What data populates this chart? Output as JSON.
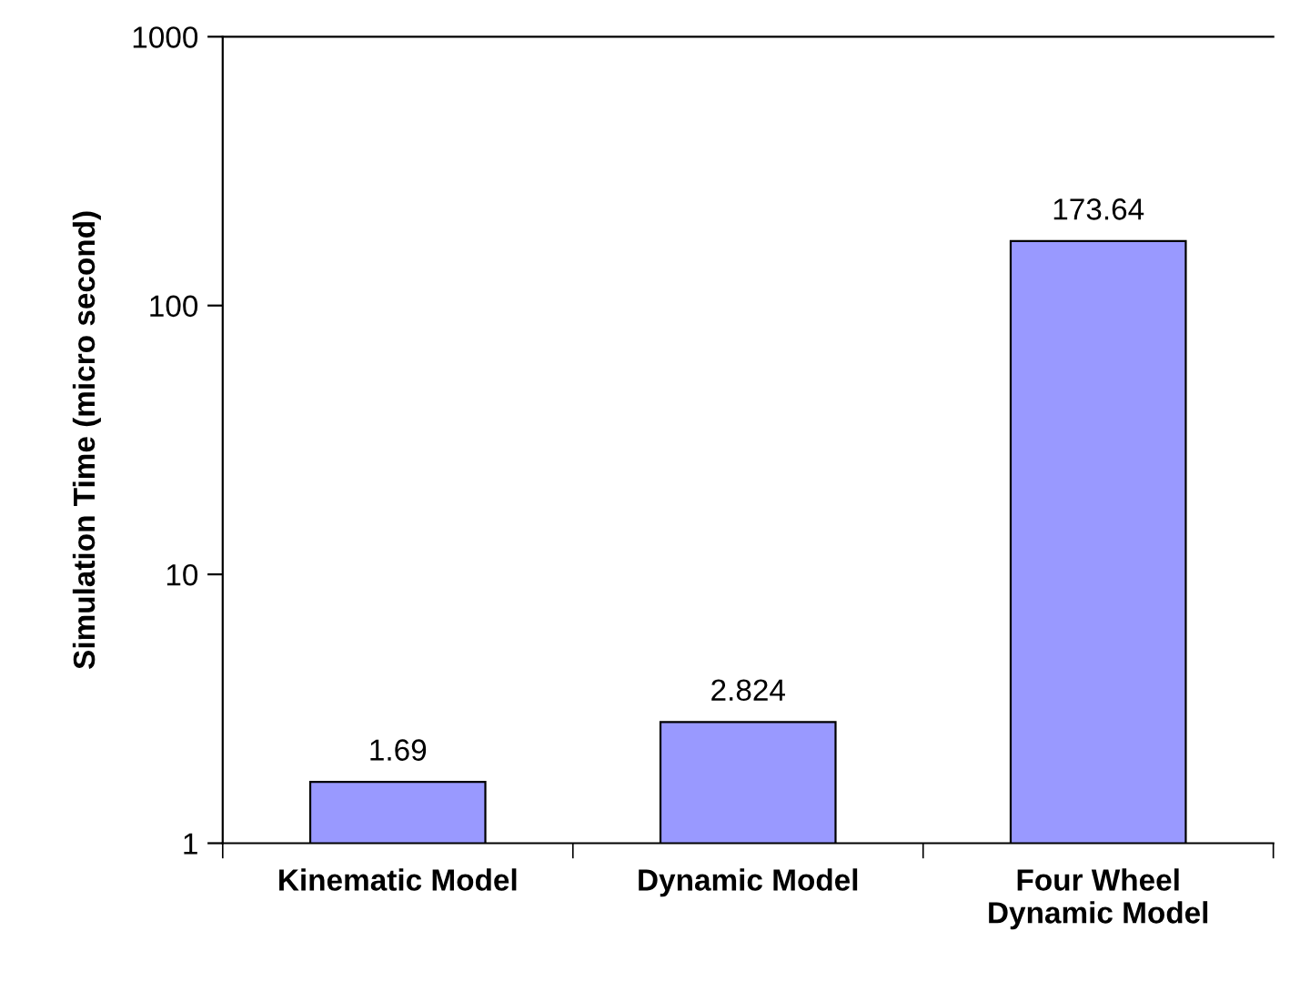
{
  "chart_data": {
    "type": "bar",
    "ylabel": "Simulation Time (micro second)",
    "categories": [
      "Kinematic Model",
      "Dynamic Model",
      "Four Wheel\nDynamic Model"
    ],
    "values": [
      1.69,
      2.824,
      173.64
    ],
    "color": "#9999ff",
    "log": true,
    "ylim": [
      1,
      1000
    ],
    "yticks": [
      1,
      10,
      100,
      1000
    ],
    "grid": false,
    "data_labels": true
  }
}
